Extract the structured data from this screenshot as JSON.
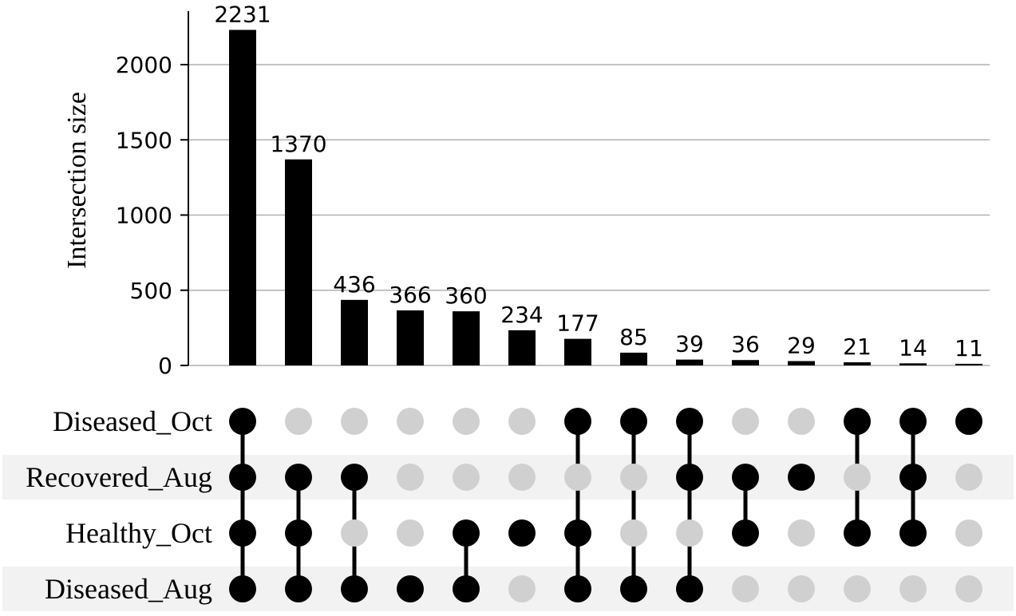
{
  "chart_data": {
    "type": "bar",
    "title": "",
    "xlabel": "",
    "ylabel": "Intersection size",
    "ylim": [
      0,
      2350
    ],
    "yticks": [
      0,
      500,
      1000,
      1500,
      2000
    ],
    "grid": true,
    "sets": [
      "Diseased_Oct",
      "Recovered_Aug",
      "Healthy_Oct",
      "Diseased_Aug"
    ],
    "intersections": [
      {
        "size": 2231,
        "members": [
          "Diseased_Oct",
          "Recovered_Aug",
          "Healthy_Oct",
          "Diseased_Aug"
        ]
      },
      {
        "size": 1370,
        "members": [
          "Recovered_Aug",
          "Healthy_Oct",
          "Diseased_Aug"
        ]
      },
      {
        "size": 436,
        "members": [
          "Recovered_Aug",
          "Diseased_Aug"
        ]
      },
      {
        "size": 366,
        "members": [
          "Diseased_Aug"
        ]
      },
      {
        "size": 360,
        "members": [
          "Healthy_Oct",
          "Diseased_Aug"
        ]
      },
      {
        "size": 234,
        "members": [
          "Healthy_Oct"
        ]
      },
      {
        "size": 177,
        "members": [
          "Diseased_Oct",
          "Healthy_Oct",
          "Diseased_Aug"
        ]
      },
      {
        "size": 85,
        "members": [
          "Diseased_Oct",
          "Diseased_Aug"
        ]
      },
      {
        "size": 39,
        "members": [
          "Diseased_Oct",
          "Recovered_Aug",
          "Diseased_Aug"
        ]
      },
      {
        "size": 36,
        "members": [
          "Recovered_Aug",
          "Healthy_Oct"
        ]
      },
      {
        "size": 29,
        "members": [
          "Recovered_Aug"
        ]
      },
      {
        "size": 21,
        "members": [
          "Diseased_Oct",
          "Healthy_Oct"
        ]
      },
      {
        "size": 14,
        "members": [
          "Diseased_Oct",
          "Recovered_Aug",
          "Healthy_Oct"
        ]
      },
      {
        "size": 11,
        "members": [
          "Diseased_Oct"
        ]
      }
    ],
    "colors": {
      "bar": "#000000",
      "dot_active": "#000000",
      "dot_inactive": "#d0d0d0",
      "grid": "#b0b0b0",
      "row_shade": "#f2f2f2"
    }
  }
}
